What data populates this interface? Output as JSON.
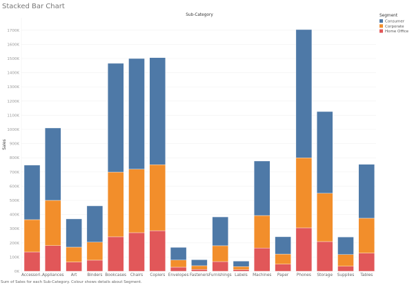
{
  "title": "Stacked Bar Chart",
  "footer": "Sum of Sales for each Sub-Category. Colour shows details about Segment.",
  "chart_data": {
    "type": "bar",
    "stacked": true,
    "title": "Stacked Bar Chart",
    "xlabel": "Sub-Category",
    "ylabel": "Sales",
    "ylim": [
      0,
      1750000
    ],
    "yticks": [
      0,
      100000,
      200000,
      300000,
      400000,
      500000,
      600000,
      700000,
      800000,
      900000,
      1000000,
      1100000,
      1200000,
      1300000,
      1400000,
      1500000,
      1600000,
      1700000
    ],
    "ytick_labels": [
      "0K",
      "100K",
      "200K",
      "300K",
      "400K",
      "500K",
      "600K",
      "700K",
      "800K",
      "900K",
      "1000K",
      "1100K",
      "1200K",
      "1300K",
      "1400K",
      "1500K",
      "1600K",
      "1700K"
    ],
    "grid": true,
    "legend_title": "Segment",
    "legend_position": "top-right",
    "categories": [
      "Accessori..",
      "Appliances",
      "Art",
      "Binders",
      "Bookcases",
      "Chairs",
      "Copiers",
      "Envelopes",
      "Fasteners",
      "Furnishings",
      "Labels",
      "Machines",
      "Paper",
      "Phones",
      "Storage",
      "Supplies",
      "Tables"
    ],
    "series": [
      {
        "name": "Home Office",
        "color": "#e15759",
        "values": [
          136000,
          181000,
          65000,
          78000,
          243000,
          272000,
          286000,
          29000,
          13000,
          68000,
          11000,
          164000,
          50000,
          306000,
          209000,
          35000,
          128000
        ]
      },
      {
        "name": "Corporate",
        "color": "#f28e2b",
        "values": [
          228000,
          319000,
          105000,
          127000,
          456000,
          448000,
          465000,
          50000,
          26000,
          112000,
          22000,
          229000,
          71000,
          494000,
          341000,
          83000,
          246000
        ]
      },
      {
        "name": "Consumer",
        "color": "#4e79a7",
        "values": [
          384000,
          510000,
          199000,
          256000,
          767000,
          780000,
          755000,
          89000,
          42000,
          203000,
          38000,
          384000,
          122000,
          904000,
          576000,
          123000,
          380000
        ]
      }
    ],
    "legend_order": [
      "Consumer",
      "Corporate",
      "Home Office"
    ]
  }
}
